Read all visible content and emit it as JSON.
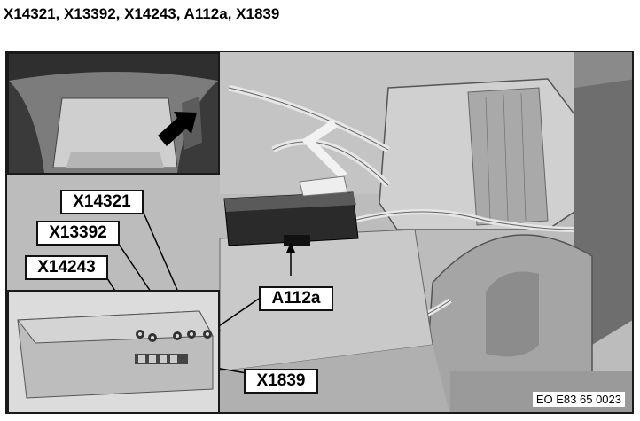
{
  "title": "X14321, X13392, X14243, A112a, X1839",
  "labels": {
    "x14321": "X14321",
    "x13392": "X13392",
    "x14243": "X14243",
    "a112a": "A112a",
    "x1839": "X1839"
  },
  "figure_code": "EO E83 65 0023"
}
